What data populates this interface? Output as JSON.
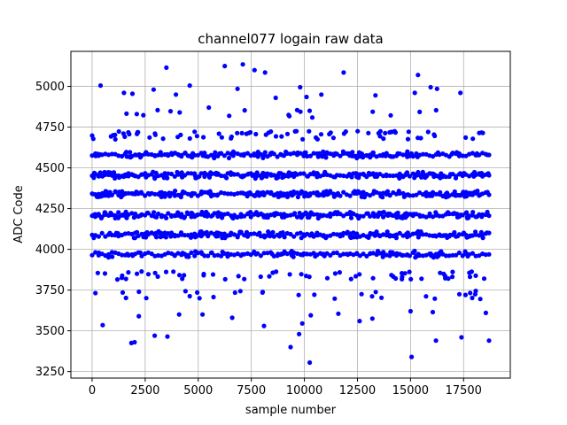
{
  "chart_data": {
    "type": "scatter",
    "title": "channel077 logain raw data",
    "xlabel": "sample number",
    "ylabel": "ADC Code",
    "xlim": [
      -1000,
      19700
    ],
    "ylim": [
      3210,
      5215
    ],
    "xticks": [
      0,
      2500,
      5000,
      7500,
      10000,
      12500,
      15000,
      17500
    ],
    "xtick_labels": [
      "0",
      "2500",
      "5000",
      "7500",
      "10000",
      "12500",
      "15000",
      "17500"
    ],
    "yticks": [
      3250,
      3500,
      3750,
      4000,
      4250,
      4500,
      4750,
      5000
    ],
    "ytick_labels": [
      "3250",
      "3500",
      "3750",
      "4000",
      "4250",
      "4500",
      "4750",
      "5000"
    ],
    "grid": true,
    "marker_color": "#0000ff",
    "series": [
      {
        "sample_range": [
          0,
          18700
        ],
        "dense_bands": [
          {
            "y": 4580,
            "density": 0.7
          },
          {
            "y": 4455,
            "density": 1.0
          },
          {
            "y": 4340,
            "density": 1.0
          },
          {
            "y": 4210,
            "density": 1.0
          },
          {
            "y": 4090,
            "density": 0.85
          },
          {
            "y": 3970,
            "density": 0.45
          }
        ],
        "sparse_bands": [
          {
            "y": 4700,
            "density": 0.5
          },
          {
            "y": 3840,
            "density": 0.4
          },
          {
            "y": 3720,
            "density": 0.2
          },
          {
            "y": 4830,
            "density": 0.12
          }
        ],
        "outliers": [
          [
            400,
            5005
          ],
          [
            3500,
            5115
          ],
          [
            7100,
            5135
          ],
          [
            7650,
            5100
          ],
          [
            8150,
            5085
          ],
          [
            6250,
            5125
          ],
          [
            11850,
            5085
          ],
          [
            15350,
            5070
          ],
          [
            4600,
            5005
          ],
          [
            9800,
            4995
          ],
          [
            15950,
            4995
          ],
          [
            16250,
            4985
          ],
          [
            17350,
            4960
          ],
          [
            6850,
            4985
          ],
          [
            3950,
            4950
          ],
          [
            1500,
            4960
          ],
          [
            1900,
            4955
          ],
          [
            2900,
            4980
          ],
          [
            10800,
            4950
          ],
          [
            13350,
            4945
          ],
          [
            15200,
            4960
          ],
          [
            5500,
            4870
          ],
          [
            8650,
            4930
          ],
          [
            10100,
            4935
          ],
          [
            10250,
            3305
          ],
          [
            15050,
            3340
          ],
          [
            9350,
            3400
          ],
          [
            1850,
            3425
          ],
          [
            2000,
            3430
          ],
          [
            9750,
            3480
          ],
          [
            3550,
            3465
          ],
          [
            2950,
            3470
          ],
          [
            16200,
            3440
          ],
          [
            18700,
            3440
          ],
          [
            17400,
            3460
          ],
          [
            9900,
            3545
          ],
          [
            8100,
            3530
          ],
          [
            500,
            3535
          ],
          [
            5200,
            3600
          ],
          [
            6600,
            3580
          ],
          [
            10300,
            3595
          ],
          [
            15000,
            3620
          ],
          [
            18550,
            3610
          ],
          [
            2200,
            3590
          ],
          [
            11600,
            3605
          ],
          [
            16050,
            3615
          ],
          [
            12600,
            3560
          ],
          [
            13200,
            3575
          ],
          [
            4100,
            3600
          ]
        ]
      }
    ]
  }
}
